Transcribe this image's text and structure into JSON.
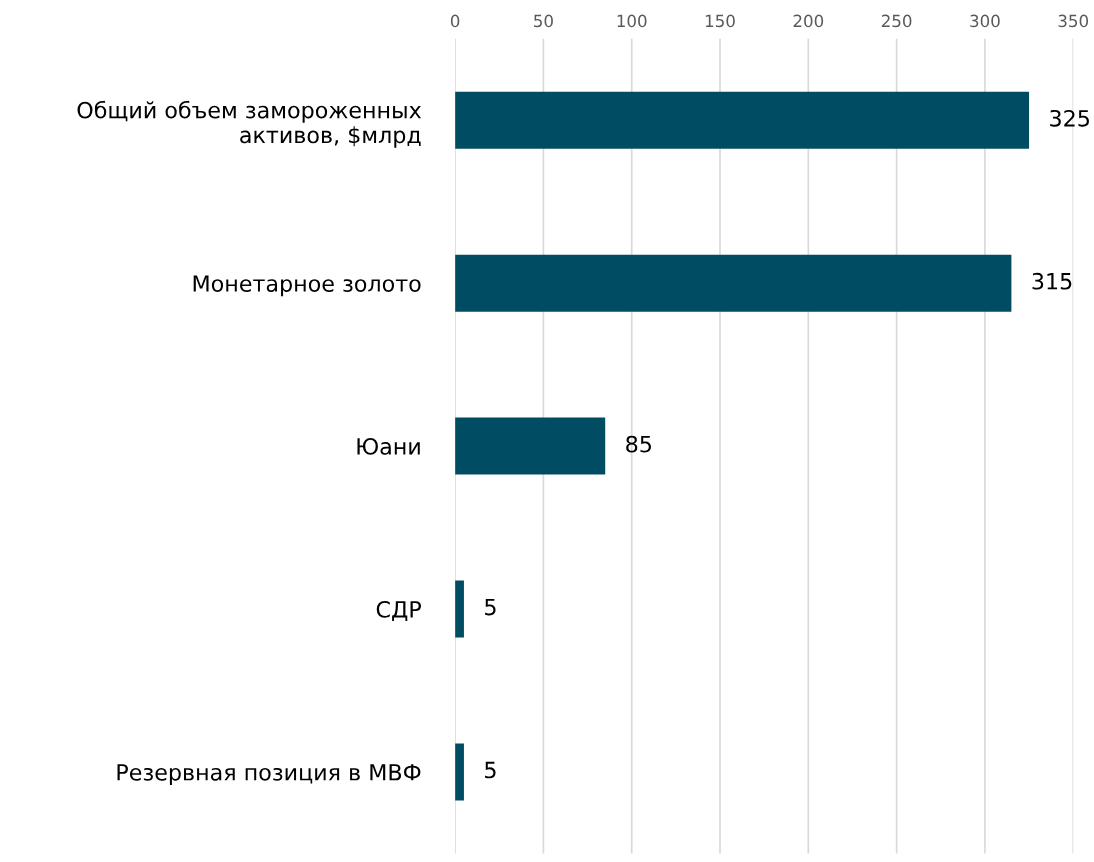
{
  "chart_data": {
    "type": "bar",
    "orientation": "horizontal",
    "categories": [
      "Общий объем замороженных\nактивов, $млрд",
      "Монетарное золото",
      "Юани",
      "СДР",
      "Резервная позиция в МВФ"
    ],
    "values": [
      325,
      315,
      85,
      5,
      5
    ],
    "color": "#004c63",
    "xlim": [
      0,
      350
    ],
    "xticks": [
      0,
      50,
      100,
      150,
      200,
      250,
      300,
      350
    ],
    "grid": "x",
    "data_labels": true
  }
}
